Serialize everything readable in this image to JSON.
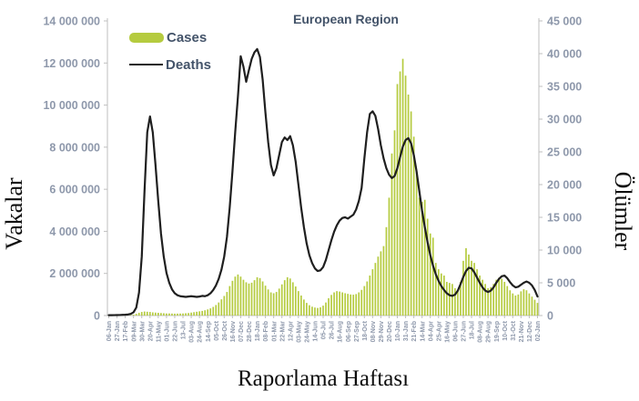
{
  "titles": {
    "chart": "European Region",
    "left_axis": "Vakalar",
    "right_axis": "Ölümler",
    "x_axis": "Raporlama Haftası"
  },
  "legend": {
    "cases_label": "Cases",
    "deaths_label": "Deaths"
  },
  "colors": {
    "cases": "#b5cb3f",
    "deaths": "#1f1f1f",
    "title_text": "#44546a",
    "tick_text": "#8e98ab",
    "axis_line": "#bfbfbf"
  },
  "chart_data": {
    "type": "bar",
    "subtype": "combo-bar-line",
    "title": "European Region",
    "xlabel": "Raporlama Haftası",
    "ylabel_left": "Vakalar",
    "ylabel_right": "Ölümler",
    "left_axis": {
      "min": 0,
      "max": 14000000,
      "step": 2000000
    },
    "right_axis": {
      "min": 0,
      "max": 45000,
      "step": 5000
    },
    "grid": false,
    "legend_position": "top-left-inside",
    "x_unit": "week",
    "x_tick_step": 3,
    "x_tick_labels": [
      "06-Jan",
      "27-Jan",
      "17-Feb",
      "09-Mar",
      "30-Mar",
      "20-Apr",
      "11-May",
      "01-Jun",
      "22-Jun",
      "13-Jul",
      "03-Aug",
      "24-Aug",
      "14-Sep",
      "05-Oct",
      "26-Oct",
      "16-Nov",
      "07-Dec",
      "28-Dec",
      "18-Jan",
      "08-Feb",
      "01-Mar",
      "22-Mar",
      "12-Apr",
      "03-May",
      "24-May",
      "14-Jun",
      "05-Jul",
      "26-Jul",
      "16-Aug",
      "06-Sep",
      "27-Sep",
      "18-Oct",
      "08-Nov",
      "29-Nov",
      "20-Dec",
      "10-Jan",
      "31-Jan",
      "21-Feb",
      "14-Mar",
      "04-Apr",
      "25-Apr",
      "16-May",
      "06-Jun",
      "27-Jun",
      "18-Jul",
      "08-Aug",
      "29-Aug",
      "19-Sep",
      "10-Oct",
      "31-Oct",
      "21-Nov",
      "12-Dec",
      "02-Jan"
    ],
    "series": [
      {
        "name": "Cases",
        "type": "bar",
        "axis": "left",
        "color": "#b5cb3f",
        "values": [
          1000,
          1000,
          2000,
          2000,
          3000,
          4000,
          6000,
          10000,
          20000,
          40000,
          80000,
          130000,
          170000,
          190000,
          180000,
          170000,
          150000,
          140000,
          130000,
          120000,
          110000,
          100000,
          100000,
          95000,
          90000,
          92000,
          95000,
          100000,
          110000,
          120000,
          140000,
          160000,
          180000,
          200000,
          220000,
          250000,
          290000,
          340000,
          410000,
          500000,
          620000,
          770000,
          930000,
          1120000,
          1400000,
          1650000,
          1850000,
          1950000,
          1850000,
          1700000,
          1580000,
          1520000,
          1560000,
          1680000,
          1820000,
          1780000,
          1620000,
          1420000,
          1240000,
          1100000,
          1060000,
          1120000,
          1280000,
          1480000,
          1680000,
          1820000,
          1760000,
          1580000,
          1380000,
          1160000,
          950000,
          760000,
          600000,
          490000,
          420000,
          380000,
          360000,
          390000,
          470000,
          620000,
          820000,
          980000,
          1100000,
          1160000,
          1140000,
          1100000,
          1060000,
          1030000,
          1000000,
          990000,
          1020000,
          1100000,
          1220000,
          1400000,
          1620000,
          1900000,
          2200000,
          2500000,
          2800000,
          3050000,
          3300000,
          4200000,
          5600000,
          7700000,
          8800000,
          11000000,
          11600000,
          12200000,
          11400000,
          10500000,
          9700000,
          8500000,
          6800000,
          5600000,
          5400000,
          5500000,
          4600000,
          3900000,
          3700000,
          2500000,
          2200000,
          2000000,
          1900000,
          1600000,
          1550000,
          1500000,
          1300000,
          1200000,
          1600000,
          2600000,
          3200000,
          2900000,
          2600000,
          2500000,
          2200000,
          1900000,
          1700000,
          1500000,
          1300000,
          1350000,
          1500000,
          1700000,
          1800000,
          1750000,
          1600000,
          1400000,
          1200000,
          1050000,
          950000,
          1000000,
          1150000,
          1250000,
          1200000,
          1050000,
          900000,
          750000,
          600000
        ]
      },
      {
        "name": "Deaths",
        "type": "line",
        "axis": "right",
        "color": "#1f1f1f",
        "values": [
          50,
          50,
          60,
          70,
          80,
          100,
          120,
          160,
          250,
          500,
          1200,
          3500,
          9000,
          19000,
          28000,
          30400,
          28000,
          23000,
          17500,
          12500,
          9000,
          6500,
          5000,
          4000,
          3400,
          3100,
          2950,
          2900,
          2850,
          2900,
          2950,
          2900,
          2850,
          2900,
          3000,
          2950,
          3100,
          3400,
          3900,
          4600,
          5600,
          7000,
          9000,
          12000,
          16500,
          22000,
          28000,
          33500,
          39600,
          38000,
          35700,
          37500,
          39200,
          40200,
          40700,
          39500,
          36000,
          31000,
          26500,
          23000,
          21400,
          22500,
          24500,
          26500,
          27200,
          26800,
          27400,
          26000,
          23500,
          20000,
          16500,
          13500,
          11000,
          9200,
          8000,
          7200,
          6800,
          6900,
          7400,
          8500,
          10000,
          11500,
          12800,
          13800,
          14500,
          14900,
          15000,
          14800,
          15100,
          15400,
          16200,
          17500,
          19500,
          24000,
          28000,
          30800,
          31200,
          30500,
          28500,
          26000,
          24000,
          22500,
          21500,
          21000,
          21300,
          22500,
          24200,
          25800,
          26800,
          27100,
          26300,
          24500,
          22000,
          19000,
          16000,
          13500,
          11200,
          9200,
          7600,
          6300,
          5300,
          4500,
          3900,
          3400,
          3100,
          3000,
          3200,
          3800,
          4800,
          5900,
          6800,
          7300,
          7200,
          6600,
          5800,
          5000,
          4300,
          3800,
          3600,
          3800,
          4300,
          5000,
          5600,
          6000,
          6100,
          5700,
          5100,
          4600,
          4300,
          4400,
          4700,
          5000,
          5200,
          5000,
          4600,
          3900,
          2900
        ]
      }
    ]
  }
}
